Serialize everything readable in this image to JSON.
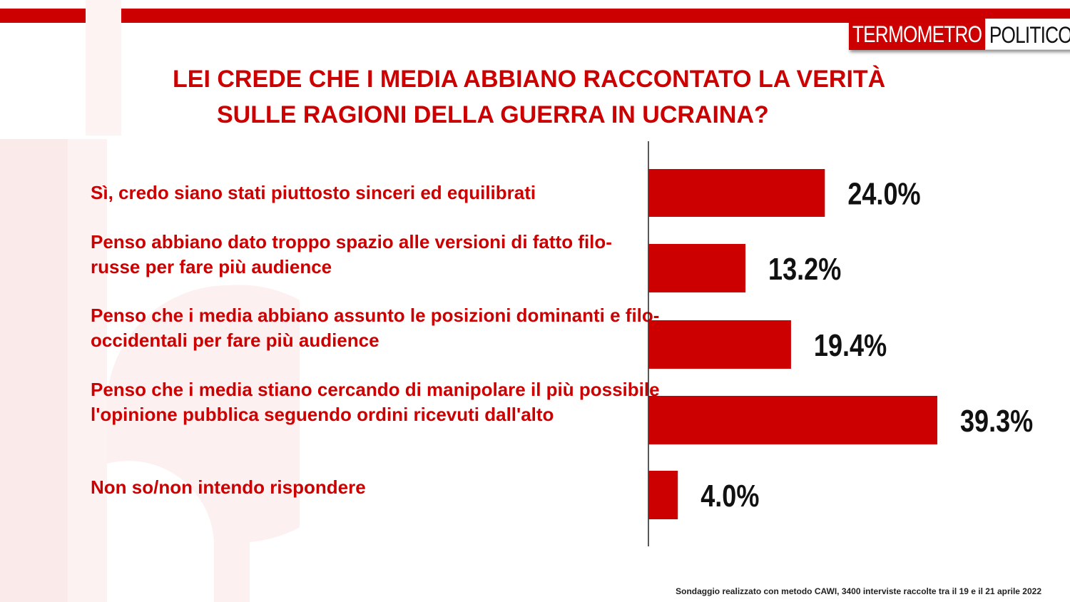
{
  "brand": {
    "part1": "TERMOMETRO",
    "part2": "POLITICO"
  },
  "colors": {
    "accent": "#cc0000",
    "bar": "#cc0000",
    "value_text": "#111111"
  },
  "chart_data": {
    "type": "bar",
    "orientation": "horizontal",
    "title": [
      "LEI CREDE CHE I MEDIA ABBIANO RACCONTATO LA VERITÀ",
      "SULLE RAGIONI DELLA GUERRA IN UCRAINA?"
    ],
    "categories": [
      "Sì, credo siano stati piuttosto sinceri ed equilibrati",
      "Penso abbiano dato troppo spazio alle versioni di fatto filo-russe per fare più audience",
      "Penso che i media abbiano assunto le posizioni dominanti e filo-occidentali per fare più audience",
      "Penso che i media stiano cercando di manipolare il più possibile l'opinione pubblica seguendo ordini ricevuti dall'alto",
      "Non so/non intendo rispondere"
    ],
    "values": [
      24.0,
      13.2,
      19.4,
      39.3,
      4.0
    ],
    "value_labels": [
      "24.0%",
      "13.2%",
      "19.4%",
      "39.3%",
      "4.0%"
    ],
    "unit": "%",
    "xlim": [
      0,
      39.3
    ],
    "grid": false,
    "legend": "none"
  },
  "footnote": "Sondaggio realizzato con metodo CAWI, 3400 interviste raccolte tra il 19 e il 21 aprile 2022"
}
